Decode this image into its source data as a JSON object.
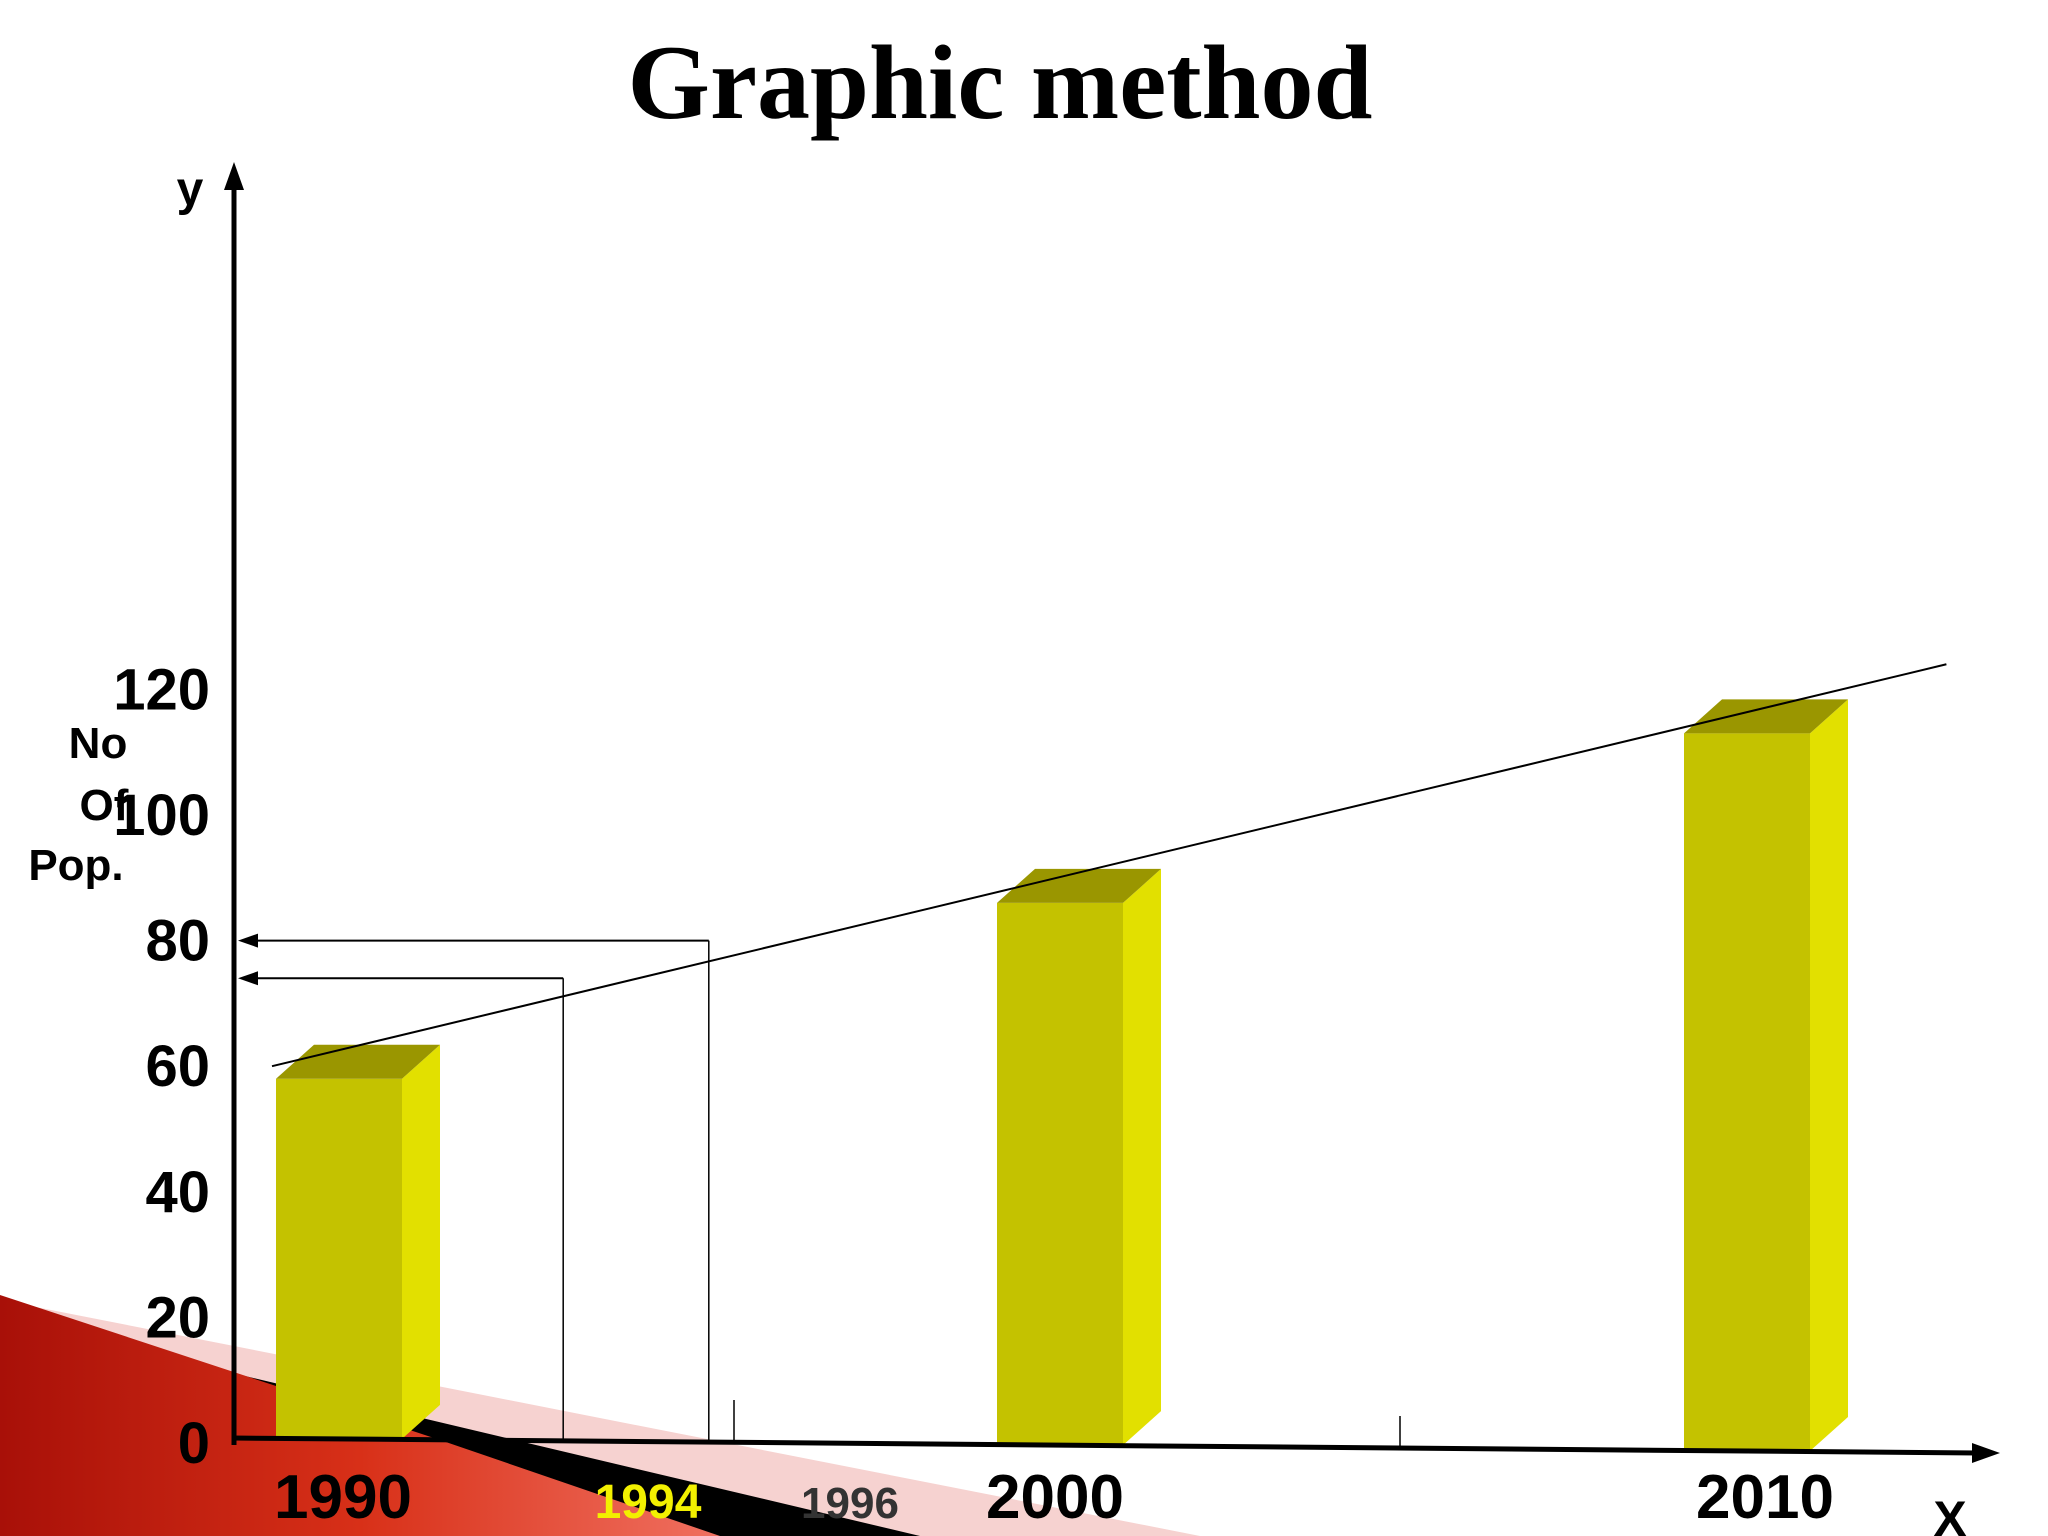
{
  "chart_data": {
    "type": "bar",
    "title": "Graphic method",
    "xlabel": "X",
    "ylabel": "y",
    "ylabel_side": [
      "No",
      "Of",
      "Pop."
    ],
    "ylim": [
      0,
      120
    ],
    "yticks": [
      0,
      20,
      40,
      60,
      80,
      100,
      120
    ],
    "categories": [
      "1990",
      "2000",
      "2010"
    ],
    "values": [
      58,
      86,
      113
    ],
    "bar_colors": {
      "front": "#c4c200",
      "side": "#e2e000",
      "top": "#9a9600"
    },
    "trend_line": {
      "x": [
        1990,
        2013
      ],
      "y": [
        60,
        124
      ]
    },
    "interpolation": [
      {
        "x": 1994,
        "x_label": "1994",
        "y": 74,
        "label_color": "#f2f000"
      },
      {
        "x": 1996,
        "x_label": "1996",
        "y": 80,
        "label_color": "#333333"
      }
    ],
    "grid": false,
    "legend": "none"
  },
  "decoration": {
    "accent_red": "#c81c10",
    "accent_pink": "#f6d2d0"
  }
}
